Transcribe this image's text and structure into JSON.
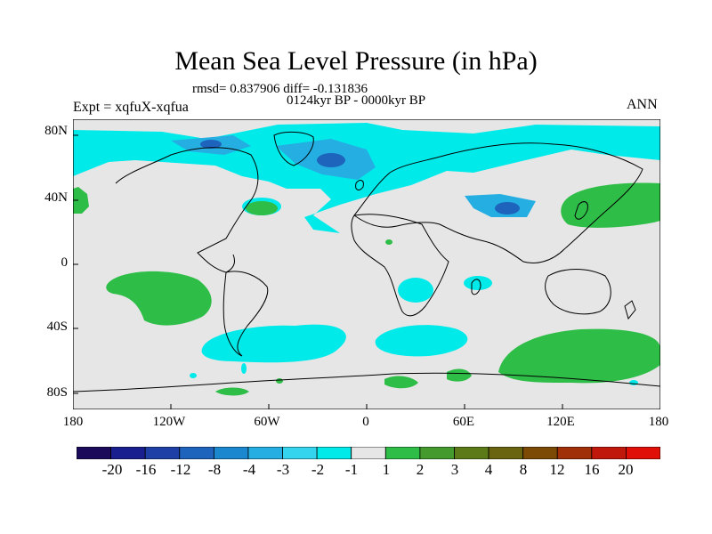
{
  "title": "Mean Sea Level Pressure (in hPa)",
  "stats_text": "rmsd= 0.837906 diff= -0.131836",
  "period_text": "0124kyr BP - 0000kyr BP",
  "experiment_text": "Expt = xqfuX-xqfua",
  "season_text": "ANN",
  "lat_labels": [
    "80N",
    "40N",
    "0",
    "40S",
    "80S"
  ],
  "lon_labels": [
    "180",
    "120W",
    "60W",
    "0",
    "60E",
    "120E",
    "180"
  ],
  "legend": {
    "colors": [
      "#1b0a5a",
      "#191f8e",
      "#1e3fa6",
      "#1e63bc",
      "#1a87cf",
      "#24aee2",
      "#35d4ee",
      "#00eaea",
      "#e6e6e6",
      "#2ebd47",
      "#449a2c",
      "#5c7b18",
      "#6a6410",
      "#7d4a06",
      "#a03008",
      "#c0180a",
      "#e01008"
    ],
    "labels": [
      "-20",
      "-16",
      "-12",
      "-8",
      "-4",
      "-3",
      "-2",
      "-1",
      "1",
      "2",
      "3",
      "4",
      "8",
      "12",
      "16",
      "20"
    ]
  },
  "palette": {
    "background": "#e6e6e6",
    "light_cyan": "#00eaea",
    "mid_cyan": "#24aee2",
    "dark_blue": "#1e63bc",
    "green": "#2ebd47"
  }
}
